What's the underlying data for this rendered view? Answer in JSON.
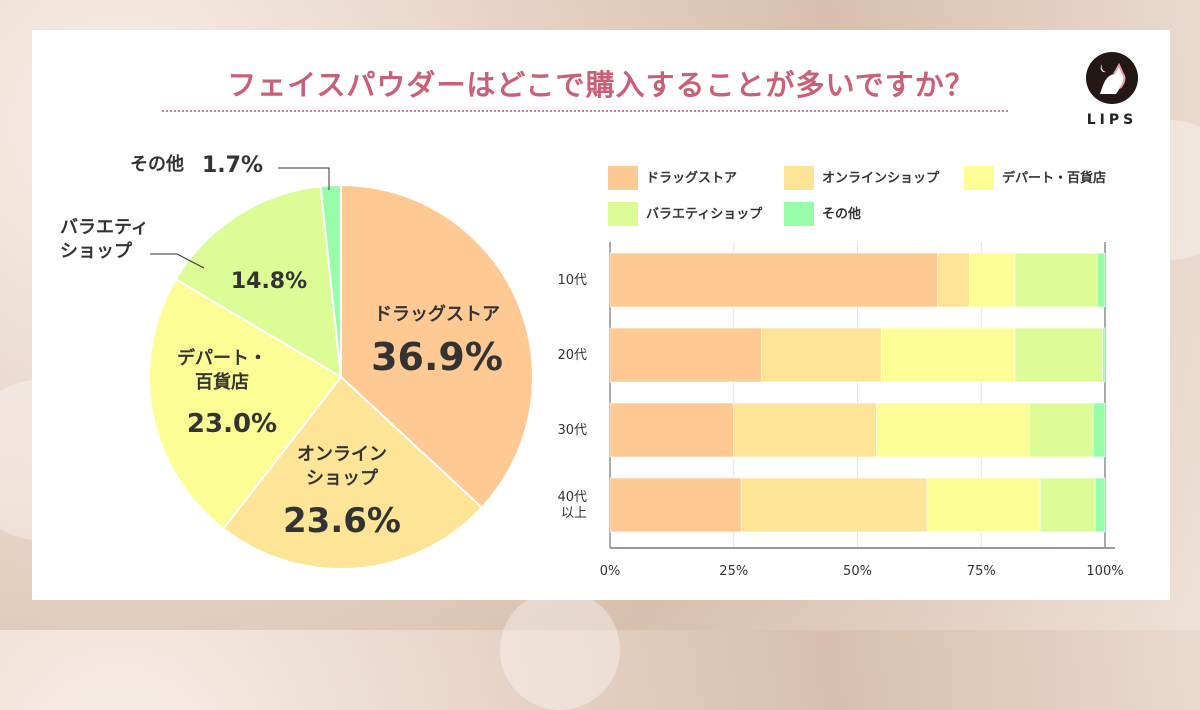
{
  "title": "フェイスパウダーはどこで購入することが多いですか？",
  "logo_text": "LIPS",
  "colors": {
    "drugstore": "#ffc994",
    "online": "#fde496",
    "department": "#fdfd96",
    "variety": "#dcfd96",
    "other": "#98fda9",
    "title": "#c8607a"
  },
  "chart_data": [
    {
      "type": "pie",
      "categories": [
        "ドラッグストア",
        "オンラインショップ",
        "デパート・百貨店",
        "バラエティショップ",
        "その他"
      ],
      "labels": [
        "ドラッグストア",
        "オンライン\nショップ",
        "デパート・\n百貨店",
        "バラエティ\nショップ",
        "その他"
      ],
      "value_labels": [
        "36.9%",
        "23.6%",
        "23.0%",
        "14.8%",
        "1.7%"
      ],
      "values": [
        36.9,
        23.6,
        23.0,
        14.8,
        1.7
      ]
    },
    {
      "type": "bar",
      "orientation": "horizontal",
      "stacked": "100%",
      "categories": [
        "10代",
        "20代",
        "30代",
        "40代\n以上"
      ],
      "series": [
        {
          "name": "ドラッグストア",
          "values": [
            66.2,
            30.6,
            25.0,
            26.5
          ]
        },
        {
          "name": "オンラインショップ",
          "values": [
            6.4,
            24.2,
            28.8,
            37.5
          ]
        },
        {
          "name": "デパート・百貨店",
          "values": [
            9.2,
            27.0,
            30.9,
            22.9
          ]
        },
        {
          "name": "バラエティショップ",
          "values": [
            16.7,
            17.7,
            12.9,
            11.1
          ]
        },
        {
          "name": "その他",
          "values": [
            1.5,
            0.5,
            2.4,
            2.0
          ]
        }
      ],
      "xticks": [
        "0%",
        "25%",
        "50%",
        "75%",
        "100%"
      ],
      "xlim": [
        0,
        100
      ],
      "grid": true,
      "legend": "top"
    }
  ]
}
